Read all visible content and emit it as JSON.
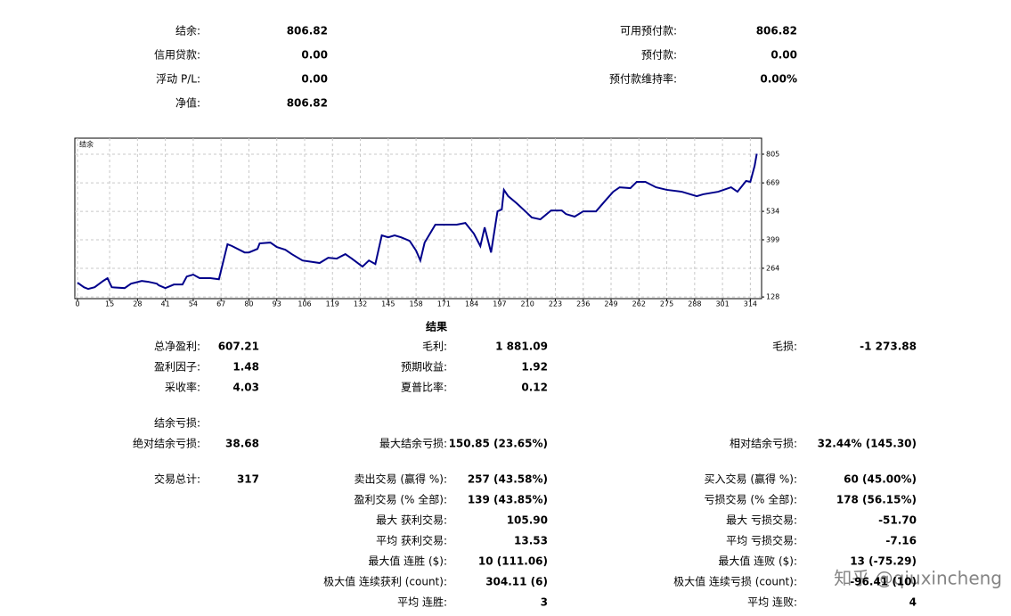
{
  "summary": {
    "left": [
      [
        "结余:",
        "806.82"
      ],
      [
        "信用贷款:",
        "0.00"
      ],
      [
        "浮动 P/L:",
        "0.00"
      ],
      [
        "净值:",
        "806.82"
      ]
    ],
    "right": [
      [
        "可用预付款:",
        "806.82"
      ],
      [
        "预付款:",
        "0.00"
      ],
      [
        "预付款维持率:",
        "0.00%"
      ]
    ]
  },
  "chart_data": {
    "type": "line",
    "title": "结余",
    "x": [
      0,
      3,
      5,
      8,
      12,
      14,
      16,
      22,
      25,
      27,
      30,
      33,
      37,
      38,
      41,
      45,
      49,
      51,
      54,
      57,
      62,
      66,
      70,
      72,
      78,
      80,
      84,
      85,
      90,
      93,
      97,
      100,
      105,
      113,
      117,
      121,
      125,
      128,
      133,
      136,
      139,
      142,
      145,
      148,
      151,
      155,
      158,
      160,
      162,
      167,
      172,
      177,
      181,
      185,
      188,
      190,
      193,
      196,
      198,
      199,
      201,
      205,
      209,
      212,
      216,
      221,
      226,
      228,
      232,
      236,
      242,
      246,
      250,
      253,
      258,
      261,
      265,
      270,
      275,
      282,
      289,
      292,
      299,
      305,
      308,
      312,
      314,
      316,
      317
    ],
    "series": [
      {
        "name": "结余",
        "color": "#00008b",
        "values": [
          196,
          174,
          166,
          174,
          204,
          217,
          174,
          170,
          191,
          196,
          204,
          200,
          191,
          183,
          170,
          187,
          187,
          225,
          234,
          217,
          217,
          212,
          378,
          370,
          339,
          339,
          356,
          382,
          386,
          365,
          352,
          331,
          301,
          289,
          314,
          310,
          331,
          310,
          272,
          301,
          284,
          420,
          411,
          420,
          411,
          394,
          348,
          301,
          386,
          471,
          471,
          471,
          479,
          428,
          369,
          458,
          339,
          534,
          543,
          636,
          606,
          572,
          534,
          505,
          496,
          538,
          538,
          521,
          509,
          534,
          534,
          581,
          627,
          648,
          644,
          674,
          674,
          648,
          636,
          627,
          606,
          615,
          627,
          648,
          627,
          678,
          674,
          750,
          807
        ]
      }
    ],
    "xlim": [
      0,
      318
    ],
    "ylim": [
      120,
      881
    ],
    "xticks": [
      0,
      15,
      28,
      41,
      54,
      67,
      80,
      93,
      106,
      119,
      132,
      145,
      158,
      171,
      184,
      197,
      210,
      223,
      236,
      249,
      262,
      275,
      288,
      301,
      314
    ],
    "yticks": [
      128,
      264,
      399,
      534,
      669,
      805
    ],
    "grid": true
  },
  "results": {
    "title": "结果",
    "rows": [
      [
        [
          "总净盈利:",
          "607.21"
        ],
        [
          "毛利:",
          "1 881.09"
        ],
        [
          "毛损:",
          "-1 273.88"
        ]
      ],
      [
        [
          "盈利因子:",
          "1.48"
        ],
        [
          "预期收益:",
          "1.92"
        ],
        null
      ],
      [
        [
          "采收率:",
          "4.03"
        ],
        [
          "夏普比率:",
          "0.12"
        ],
        null
      ],
      [
        [
          "结余亏损:"
        ],
        null,
        null
      ],
      [
        [
          "绝对结余亏损:",
          "38.68"
        ],
        [
          "最大结余亏损:",
          "150.85 (23.65%)"
        ],
        [
          "相对结余亏损:",
          "32.44% (145.30)"
        ]
      ],
      [
        [
          "交易总计:",
          "317"
        ],
        [
          "卖出交易 (赢得 %):",
          "257 (43.58%)"
        ],
        [
          "买入交易 (赢得 %):",
          "60 (45.00%)"
        ]
      ],
      [
        null,
        [
          "盈利交易 (% 全部):",
          "139 (43.85%)"
        ],
        [
          "亏损交易 (% 全部):",
          "178 (56.15%)"
        ]
      ],
      [
        null,
        [
          "最大 获利交易:",
          "105.90"
        ],
        [
          "最大 亏损交易:",
          "-51.70"
        ]
      ],
      [
        null,
        [
          "平均 获利交易:",
          "13.53"
        ],
        [
          "平均 亏损交易:",
          "-7.16"
        ]
      ],
      [
        null,
        [
          "最大值 连胜 ($):",
          "10 (111.06)"
        ],
        [
          "最大值 连败 ($):",
          "13 (-75.29)"
        ]
      ],
      [
        null,
        [
          "极大值 连续获利 (count):",
          "304.11 (6)"
        ],
        [
          "极大值 连续亏损 (count):",
          "-96.41 (10)"
        ]
      ],
      [
        null,
        [
          "平均 连胜:",
          "3"
        ],
        [
          "平均 连败:",
          "4"
        ]
      ]
    ]
  },
  "watermark": "知乎 @qiuxincheng"
}
